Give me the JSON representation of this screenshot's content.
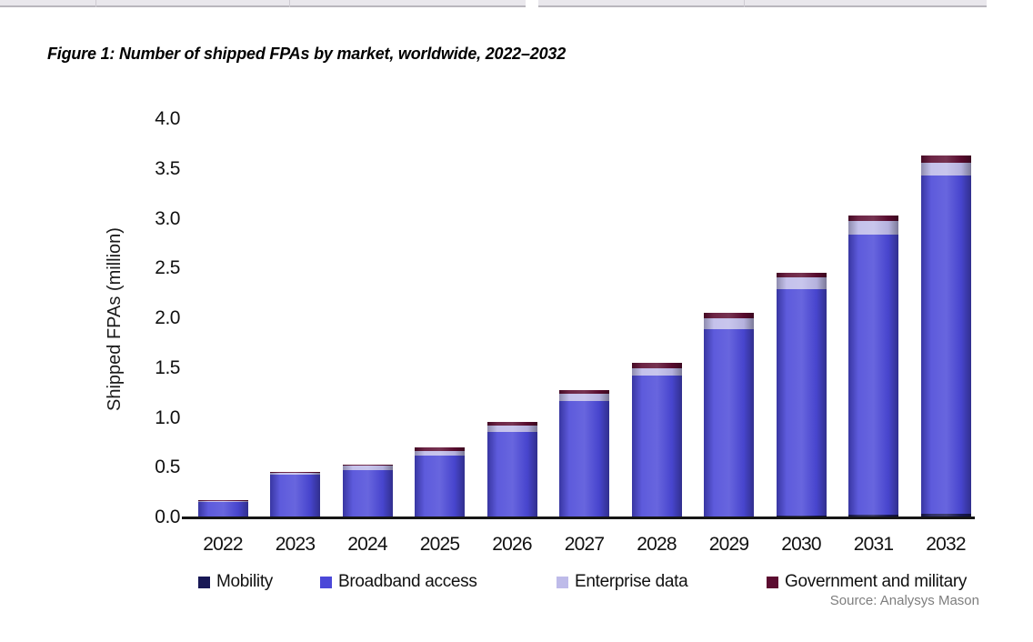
{
  "page": {
    "title": "Figure 1: Number of shipped FPAs by market, worldwide, 2022–2032",
    "source": "Source: Analysys Mason"
  },
  "chart_data": {
    "type": "bar",
    "stacked": true,
    "title": "Figure 1: Number of shipped FPAs by market, worldwide, 2022–2032",
    "xlabel": "",
    "ylabel": "Shipped FPAs (million)",
    "ylim": [
      0,
      4.0
    ],
    "yticks": [
      "0.0",
      "0.5",
      "1.0",
      "1.5",
      "2.0",
      "2.5",
      "3.0",
      "3.5",
      "4.0"
    ],
    "grid": false,
    "legend_position": "bottom",
    "categories": [
      "2022",
      "2023",
      "2024",
      "2025",
      "2026",
      "2027",
      "2028",
      "2029",
      "2030",
      "2031",
      "2032"
    ],
    "series": [
      {
        "name": "Mobility",
        "color": "#181855",
        "values": [
          0.01,
          0.01,
          0.01,
          0.01,
          0.01,
          0.02,
          0.02,
          0.02,
          0.03,
          0.04,
          0.05
        ]
      },
      {
        "name": "Broadband access",
        "color": "#4B48D8",
        "values": [
          0.15,
          0.43,
          0.47,
          0.62,
          0.86,
          1.16,
          1.41,
          1.88,
          2.27,
          2.81,
          3.39
        ]
      },
      {
        "name": "Enterprise data",
        "color": "#BEBBE9",
        "values": [
          0.01,
          0.02,
          0.05,
          0.05,
          0.06,
          0.07,
          0.08,
          0.11,
          0.12,
          0.14,
          0.13
        ]
      },
      {
        "name": "Government and military",
        "color": "#5C0C30",
        "values": [
          0.01,
          0.01,
          0.01,
          0.03,
          0.04,
          0.04,
          0.05,
          0.05,
          0.05,
          0.05,
          0.07
        ]
      }
    ],
    "totals": [
      0.18,
      0.47,
      0.54,
      0.71,
      0.97,
      1.29,
      1.56,
      2.06,
      2.47,
      3.04,
      3.64
    ]
  }
}
